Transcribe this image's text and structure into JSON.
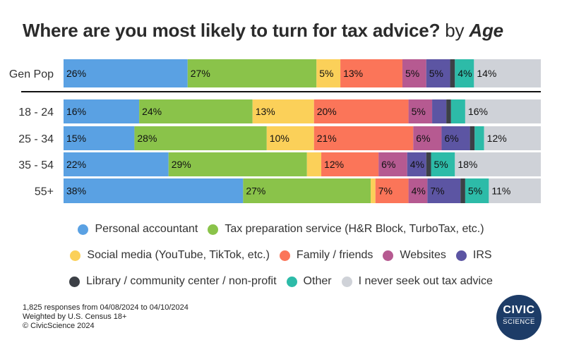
{
  "title": {
    "main": "Where are you most likely to turn for tax advice?",
    "by": "by",
    "dimension": "Age"
  },
  "chart_data": {
    "type": "bar",
    "orientation": "horizontal",
    "stacked": true,
    "categories": [
      "Gen Pop",
      "18 - 24",
      "25 - 34",
      "35 - 54",
      "55+"
    ],
    "xlim": [
      0,
      100
    ],
    "grid": false,
    "legend_position": "bottom",
    "series": [
      {
        "name": "Personal accountant",
        "color": "#5aa1e3",
        "values": [
          26,
          16,
          15,
          22,
          38
        ]
      },
      {
        "name": "Tax preparation service (H&R Block, TurboTax, etc.)",
        "color": "#8ac34a",
        "values": [
          27,
          24,
          28,
          29,
          27
        ]
      },
      {
        "name": "Social media (YouTube, TikTok, etc.)",
        "color": "#fbd059",
        "values": [
          5,
          13,
          10,
          3,
          1
        ]
      },
      {
        "name": "Family / friends",
        "color": "#fb7559",
        "values": [
          13,
          20,
          21,
          12,
          7
        ]
      },
      {
        "name": "Websites",
        "color": "#b65a91",
        "values": [
          5,
          5,
          6,
          6,
          4
        ]
      },
      {
        "name": "IRS",
        "color": "#5c55a3",
        "values": [
          5,
          3,
          6,
          4,
          7
        ]
      },
      {
        "name": "Library / community center / non-profit",
        "color": "#3c4046",
        "values": [
          1,
          1,
          1,
          1,
          1
        ]
      },
      {
        "name": "Other",
        "color": "#2dbba8",
        "values": [
          4,
          3,
          2,
          5,
          5
        ]
      },
      {
        "name": "I never seek out tax advice",
        "color": "#cfd2d8",
        "values": [
          14,
          16,
          12,
          18,
          11
        ]
      }
    ],
    "labels": [
      [
        "26%",
        "27%",
        "5%",
        "13%",
        "5%",
        "5%",
        "",
        "4%",
        "14%"
      ],
      [
        "16%",
        "24%",
        "13%",
        "20%",
        "5%",
        "",
        "",
        "",
        "16%"
      ],
      [
        "15%",
        "28%",
        "10%",
        "21%",
        "6%",
        "6%",
        "",
        "",
        "12%"
      ],
      [
        "22%",
        "29%",
        "",
        "12%",
        "6%",
        "4%",
        "",
        "5%",
        "18%"
      ],
      [
        "38%",
        "27%",
        "",
        "7%",
        "4%",
        "7%",
        "",
        "5%",
        "11%"
      ]
    ]
  },
  "footnote": [
    "1,825 responses from 04/08/2024 to 04/10/2024",
    "Weighted by U.S. Census 18+",
    "© CivicScience 2024"
  ],
  "logo": {
    "line1": "CIVIC",
    "line2": "SCIENCE"
  }
}
